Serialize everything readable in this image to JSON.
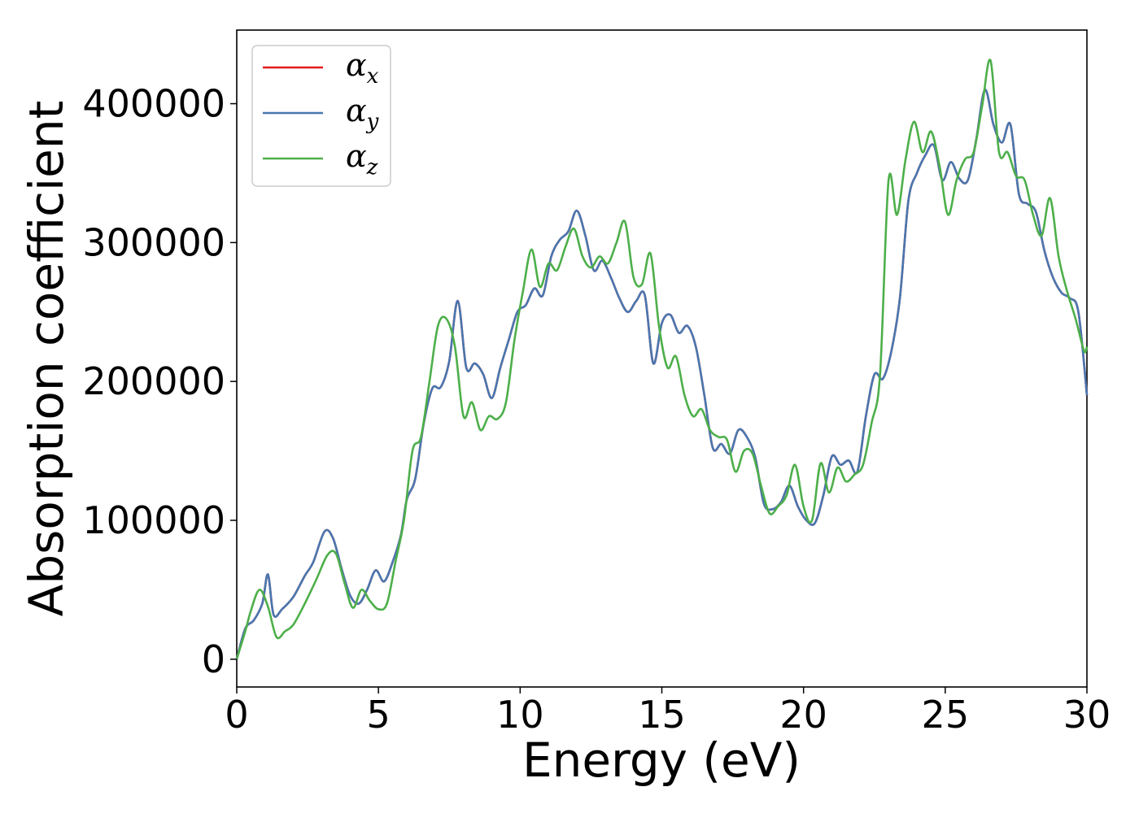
{
  "chart_data": {
    "type": "line",
    "xlabel": "Energy (eV)",
    "ylabel": "Absorption coefficient",
    "xlim": [
      0,
      30
    ],
    "ylim": [
      -20000,
      453000
    ],
    "xticks": [
      0,
      5,
      10,
      15,
      20,
      25,
      30
    ],
    "xtick_labels": [
      "0",
      "5",
      "10",
      "15",
      "20",
      "25",
      "30"
    ],
    "yticks": [
      0,
      100000,
      200000,
      300000,
      400000
    ],
    "ytick_labels": [
      "0",
      "100000",
      "200000",
      "300000",
      "400000"
    ],
    "grid": false,
    "legend_position": "top-left",
    "series": [
      {
        "name": "α",
        "subscript": "x",
        "color": "#e41a1c",
        "x": [
          0,
          0.3,
          0.6,
          0.9,
          1.1,
          1.3,
          1.6,
          2.0,
          2.4,
          2.7,
          3.1,
          3.4,
          3.7,
          4.0,
          4.3,
          4.6,
          4.9,
          5.2,
          5.5,
          5.8,
          6.0,
          6.3,
          6.6,
          6.9,
          7.2,
          7.5,
          7.8,
          8.1,
          8.4,
          8.7,
          9.0,
          9.3,
          9.6,
          9.9,
          10.2,
          10.5,
          10.8,
          11.1,
          11.4,
          11.7,
          12.0,
          12.3,
          12.6,
          12.9,
          13.2,
          13.5,
          13.8,
          14.1,
          14.4,
          14.7,
          15.0,
          15.3,
          15.6,
          15.9,
          16.2,
          16.5,
          16.8,
          17.1,
          17.4,
          17.7,
          18.0,
          18.3,
          18.6,
          18.9,
          19.2,
          19.5,
          19.8,
          20.1,
          20.4,
          20.7,
          21.0,
          21.3,
          21.6,
          21.9,
          22.2,
          22.5,
          22.8,
          23.1,
          23.4,
          23.7,
          24.0,
          24.3,
          24.6,
          24.9,
          25.2,
          25.5,
          25.8,
          26.1,
          26.4,
          26.7,
          27.0,
          27.3,
          27.6,
          27.9,
          28.2,
          28.5,
          28.8,
          29.1,
          29.4,
          29.7,
          30.0
        ],
        "y": [
          0,
          22000,
          28000,
          40000,
          61000,
          32000,
          36000,
          45000,
          60000,
          70000,
          92000,
          87000,
          65000,
          46000,
          40000,
          50000,
          64000,
          56000,
          70000,
          90000,
          115000,
          130000,
          170000,
          195000,
          196000,
          215000,
          258000,
          210000,
          213000,
          205000,
          188000,
          210000,
          230000,
          250000,
          255000,
          267000,
          262000,
          290000,
          302000,
          308000,
          323000,
          305000,
          280000,
          287000,
          275000,
          260000,
          250000,
          258000,
          262000,
          213000,
          242000,
          248000,
          235000,
          240000,
          225000,
          190000,
          152000,
          155000,
          148000,
          165000,
          160000,
          145000,
          112000,
          108000,
          113000,
          125000,
          110000,
          100000,
          98000,
          118000,
          146000,
          140000,
          143000,
          135000,
          175000,
          205000,
          202000,
          222000,
          260000,
          330000,
          350000,
          363000,
          370000,
          345000,
          358000,
          346000,
          345000,
          375000,
          410000,
          385000,
          372000,
          385000,
          335000,
          328000,
          322000,
          294000,
          275000,
          264000,
          260000,
          250000,
          190000
        ]
      },
      {
        "name": "α",
        "subscript": "y",
        "color": "#4877b0",
        "x": [
          0,
          0.3,
          0.6,
          0.9,
          1.1,
          1.3,
          1.6,
          2.0,
          2.4,
          2.7,
          3.1,
          3.4,
          3.7,
          4.0,
          4.3,
          4.6,
          4.9,
          5.2,
          5.5,
          5.8,
          6.0,
          6.3,
          6.6,
          6.9,
          7.2,
          7.5,
          7.8,
          8.1,
          8.4,
          8.7,
          9.0,
          9.3,
          9.6,
          9.9,
          10.2,
          10.5,
          10.8,
          11.1,
          11.4,
          11.7,
          12.0,
          12.3,
          12.6,
          12.9,
          13.2,
          13.5,
          13.8,
          14.1,
          14.4,
          14.7,
          15.0,
          15.3,
          15.6,
          15.9,
          16.2,
          16.5,
          16.8,
          17.1,
          17.4,
          17.7,
          18.0,
          18.3,
          18.6,
          18.9,
          19.2,
          19.5,
          19.8,
          20.1,
          20.4,
          20.7,
          21.0,
          21.3,
          21.6,
          21.9,
          22.2,
          22.5,
          22.8,
          23.1,
          23.4,
          23.7,
          24.0,
          24.3,
          24.6,
          24.9,
          25.2,
          25.5,
          25.8,
          26.1,
          26.4,
          26.7,
          27.0,
          27.3,
          27.6,
          27.9,
          28.2,
          28.5,
          28.8,
          29.1,
          29.4,
          29.7,
          30.0
        ],
        "y": [
          0,
          22000,
          28000,
          40000,
          61000,
          32000,
          36000,
          45000,
          60000,
          70000,
          92000,
          87000,
          65000,
          46000,
          40000,
          50000,
          64000,
          56000,
          70000,
          90000,
          115000,
          130000,
          170000,
          195000,
          196000,
          215000,
          258000,
          210000,
          213000,
          205000,
          188000,
          210000,
          230000,
          250000,
          255000,
          267000,
          262000,
          290000,
          302000,
          308000,
          323000,
          305000,
          280000,
          287000,
          275000,
          260000,
          250000,
          258000,
          262000,
          213000,
          242000,
          248000,
          235000,
          240000,
          225000,
          190000,
          152000,
          155000,
          148000,
          165000,
          160000,
          145000,
          112000,
          108000,
          113000,
          125000,
          110000,
          100000,
          98000,
          118000,
          146000,
          140000,
          143000,
          135000,
          175000,
          205000,
          202000,
          222000,
          260000,
          330000,
          350000,
          363000,
          370000,
          345000,
          358000,
          346000,
          345000,
          375000,
          410000,
          385000,
          372000,
          385000,
          335000,
          328000,
          322000,
          294000,
          275000,
          264000,
          260000,
          250000,
          190000
        ]
      },
      {
        "name": "α",
        "subscript": "z",
        "color": "#4daf4a",
        "x": [
          0,
          0.3,
          0.5,
          0.8,
          1.1,
          1.4,
          1.7,
          2.0,
          2.4,
          2.8,
          3.2,
          3.5,
          3.8,
          4.1,
          4.4,
          4.7,
          5.0,
          5.3,
          5.6,
          5.9,
          6.2,
          6.5,
          6.8,
          7.1,
          7.4,
          7.7,
          8.0,
          8.3,
          8.6,
          8.9,
          9.2,
          9.5,
          9.8,
          10.1,
          10.4,
          10.7,
          11.0,
          11.3,
          11.6,
          11.9,
          12.2,
          12.5,
          12.8,
          13.1,
          13.4,
          13.7,
          14.0,
          14.3,
          14.6,
          14.9,
          15.2,
          15.5,
          15.8,
          16.1,
          16.4,
          16.7,
          17.0,
          17.3,
          17.6,
          17.9,
          18.2,
          18.5,
          18.8,
          19.1,
          19.4,
          19.7,
          20.0,
          20.3,
          20.6,
          20.9,
          21.2,
          21.5,
          21.8,
          22.1,
          22.4,
          22.7,
          23.0,
          23.3,
          23.6,
          23.9,
          24.2,
          24.5,
          24.8,
          25.1,
          25.4,
          25.7,
          26.0,
          26.3,
          26.6,
          26.9,
          27.2,
          27.5,
          27.8,
          28.1,
          28.4,
          28.7,
          29.0,
          29.3,
          29.6,
          29.9,
          30.0
        ],
        "y": [
          0,
          20000,
          35000,
          50000,
          38000,
          16000,
          20000,
          25000,
          40000,
          57000,
          75000,
          76000,
          55000,
          37000,
          50000,
          42000,
          36000,
          40000,
          70000,
          100000,
          150000,
          160000,
          200000,
          240000,
          245000,
          225000,
          175000,
          185000,
          165000,
          175000,
          173000,
          185000,
          230000,
          265000,
          295000,
          268000,
          285000,
          280000,
          297000,
          310000,
          290000,
          282000,
          290000,
          285000,
          300000,
          315000,
          275000,
          270000,
          292000,
          240000,
          210000,
          218000,
          190000,
          175000,
          180000,
          165000,
          160000,
          158000,
          135000,
          150000,
          148000,
          125000,
          105000,
          110000,
          118000,
          140000,
          110000,
          100000,
          141000,
          120000,
          138000,
          128000,
          133000,
          140000,
          170000,
          205000,
          345000,
          320000,
          360000,
          387000,
          365000,
          380000,
          355000,
          320000,
          345000,
          360000,
          365000,
          398000,
          431000,
          365000,
          365000,
          348000,
          345000,
          320000,
          305000,
          332000,
          290000,
          265000,
          245000,
          222000,
          225000
        ]
      }
    ]
  }
}
